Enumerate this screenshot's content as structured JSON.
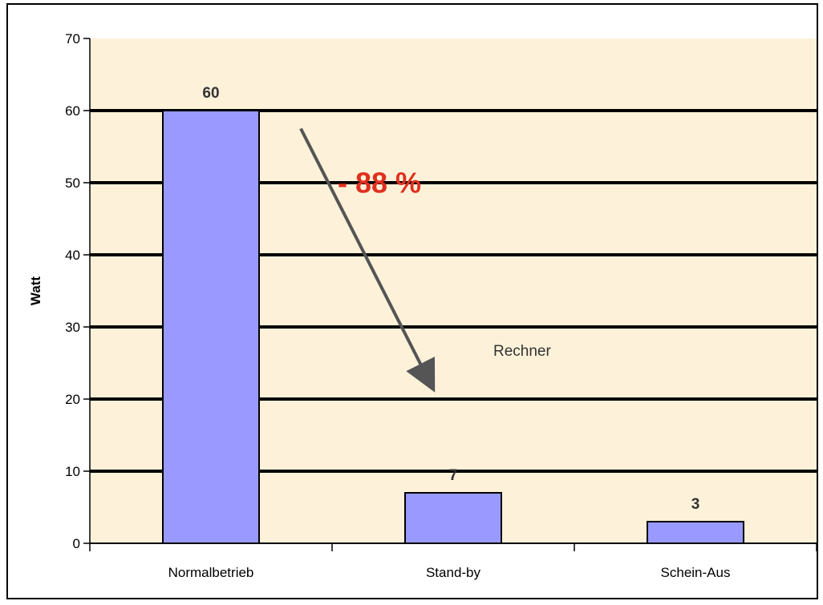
{
  "chart_data": {
    "type": "bar",
    "title": "",
    "xlabel": "",
    "ylabel": "Watt",
    "ylim": [
      0,
      70
    ],
    "yticks": [
      0,
      10,
      20,
      30,
      40,
      50,
      60,
      70
    ],
    "categories": [
      "Normalbetrieb",
      "Stand-by",
      "Schein-Aus"
    ],
    "series": [
      {
        "name": "Rechner",
        "values": [
          60,
          7,
          3
        ]
      }
    ],
    "data_labels": [
      "60",
      "7",
      "3"
    ],
    "grid": true,
    "legend": "inside-center-right",
    "annotations": [
      {
        "text": "- 88 %",
        "kind": "arrow",
        "from_category": "Normalbetrieb",
        "to_category": "Stand-by"
      }
    ],
    "colors": {
      "bar": "#9999ff",
      "plot_background": "#fdf2d9",
      "grid": "#000000",
      "annotation": "#e0301e",
      "arrow": "#555555"
    }
  }
}
